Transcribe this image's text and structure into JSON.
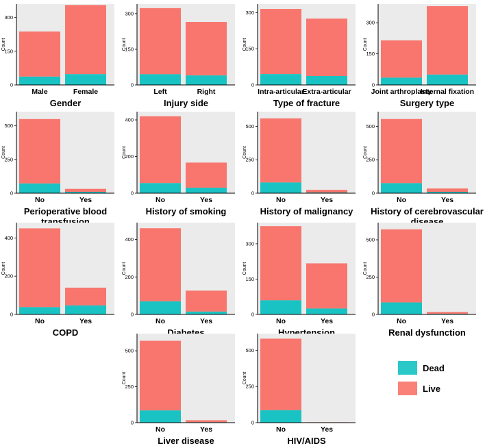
{
  "chart_data": {
    "type": "bar",
    "stacked": true,
    "ylabel": "Count",
    "legend": {
      "position": "bottom-right",
      "entries": [
        {
          "name": "Dead",
          "color": "#19c3c3"
        },
        {
          "name": "Live",
          "color": "#f8766d"
        }
      ]
    },
    "panels": [
      {
        "title": [
          "Gender"
        ],
        "categories": [
          "Male",
          "Female"
        ],
        "ylim": [
          0,
          360
        ],
        "yticks": [
          0,
          150,
          300
        ],
        "dead": [
          37,
          48
        ],
        "live": [
          201,
          308
        ]
      },
      {
        "title": [
          "Injury side"
        ],
        "categories": [
          "Left",
          "Right"
        ],
        "ylim": [
          0,
          340
        ],
        "yticks": [
          0,
          150,
          300
        ],
        "dead": [
          45,
          40
        ],
        "live": [
          278,
          225
        ]
      },
      {
        "title": [
          "Type of fracture"
        ],
        "categories": [
          "Intra-articular",
          "Extra-articular"
        ],
        "ylim": [
          0,
          335
        ],
        "yticks": [
          0,
          150,
          300
        ],
        "dead": [
          45,
          37
        ],
        "live": [
          270,
          238
        ]
      },
      {
        "title": [
          "Surgery type"
        ],
        "categories": [
          "Joint arthroplasty",
          "Internal fixation"
        ],
        "ylim": [
          0,
          390
        ],
        "yticks": [
          0,
          150,
          300
        ],
        "dead": [
          35,
          50
        ],
        "live": [
          180,
          330
        ]
      },
      {
        "title": [
          "Perioperative blood",
          "transfusion"
        ],
        "categories": [
          "No",
          "Yes"
        ],
        "ylim": [
          0,
          605
        ],
        "yticks": [
          0,
          250,
          500
        ],
        "dead": [
          72,
          10
        ],
        "live": [
          478,
          22
        ]
      },
      {
        "title": [
          "History of smoking"
        ],
        "categories": [
          "No",
          "Yes"
        ],
        "ylim": [
          0,
          445
        ],
        "yticks": [
          0,
          200,
          400
        ],
        "dead": [
          55,
          30
        ],
        "live": [
          365,
          137
        ]
      },
      {
        "title": [
          "History of malignancy"
        ],
        "categories": [
          "No",
          "Yes"
        ],
        "ylim": [
          0,
          610
        ],
        "yticks": [
          0,
          250,
          500
        ],
        "dead": [
          80,
          5
        ],
        "live": [
          480,
          20
        ]
      },
      {
        "title": [
          "History of cerebrovascular",
          "disease"
        ],
        "categories": [
          "No",
          "Yes"
        ],
        "ylim": [
          0,
          610
        ],
        "yticks": [
          0,
          250,
          500
        ],
        "dead": [
          75,
          10
        ],
        "live": [
          480,
          25
        ]
      },
      {
        "title": [
          "COPD"
        ],
        "categories": [
          "No",
          "Yes"
        ],
        "ylim": [
          0,
          480
        ],
        "yticks": [
          0,
          200,
          400
        ],
        "dead": [
          38,
          47
        ],
        "live": [
          412,
          93
        ]
      },
      {
        "title": [
          "Diabetes"
        ],
        "categories": [
          "No",
          "Yes"
        ],
        "ylim": [
          0,
          490
        ],
        "yticks": [
          0,
          200,
          400
        ],
        "dead": [
          70,
          15
        ],
        "live": [
          390,
          112
        ]
      },
      {
        "title": [
          "Hypertension"
        ],
        "categories": [
          "No",
          "Yes"
        ],
        "ylim": [
          0,
          390
        ],
        "yticks": [
          0,
          150,
          300
        ],
        "dead": [
          60,
          25
        ],
        "live": [
          315,
          192
        ]
      },
      {
        "title": [
          "Renal dysfunction"
        ],
        "categories": [
          "No",
          "Yes"
        ],
        "ylim": [
          0,
          615
        ],
        "yticks": [
          0,
          250,
          500
        ],
        "dead": [
          80,
          4
        ],
        "live": [
          490,
          12
        ]
      },
      {
        "title": [
          "Liver disease"
        ],
        "categories": [
          "No",
          "Yes"
        ],
        "ylim": [
          0,
          620
        ],
        "yticks": [
          0,
          250,
          500
        ],
        "dead": [
          85,
          3
        ],
        "live": [
          485,
          14
        ]
      },
      {
        "title": [
          "HIV/AIDS"
        ],
        "categories": [
          "No",
          "Yes"
        ],
        "ylim": [
          0,
          615
        ],
        "yticks": [
          0,
          250,
          500
        ],
        "dead": [
          86,
          0
        ],
        "live": [
          494,
          3
        ]
      }
    ]
  }
}
